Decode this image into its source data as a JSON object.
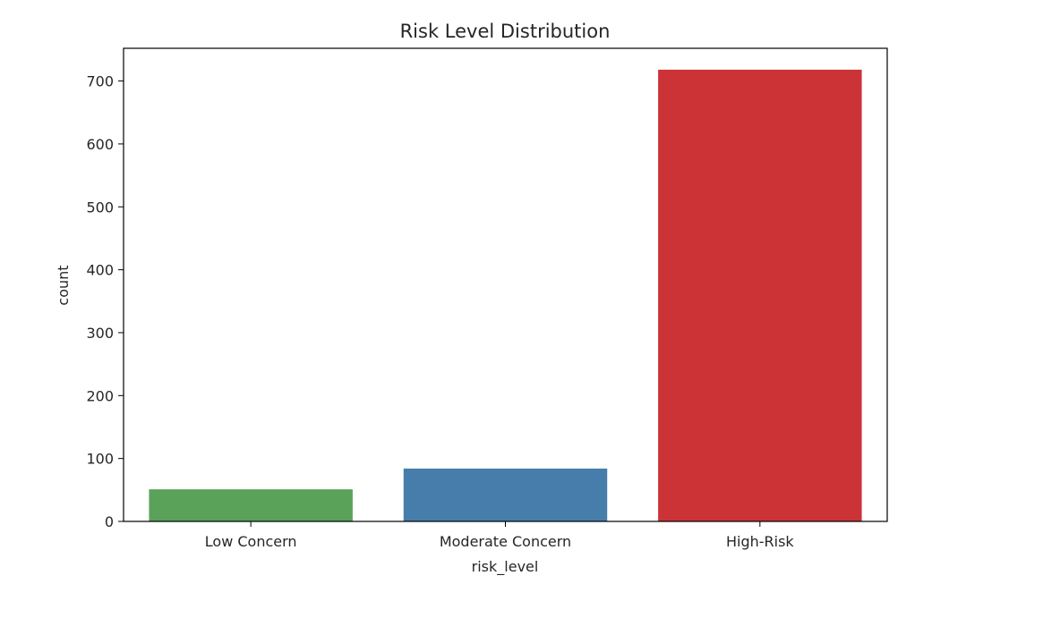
{
  "chart_data": {
    "type": "bar",
    "title": "Risk Level Distribution",
    "xlabel": "risk_level",
    "ylabel": "count",
    "categories": [
      "Low Concern",
      "Moderate Concern",
      "High-Risk"
    ],
    "values": [
      51,
      84,
      718
    ],
    "colors": [
      "#5aa25a",
      "#477dab",
      "#cc3337"
    ],
    "ylim": [
      0,
      752
    ],
    "yticks": [
      0,
      100,
      200,
      300,
      400,
      500,
      600,
      700
    ],
    "grid": false,
    "legend": "none"
  }
}
